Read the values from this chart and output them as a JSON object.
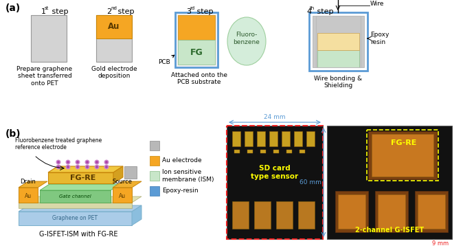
{
  "bg_color": "#ffffff",
  "color_au": "#F5A623",
  "color_fg": "#c8e6c9",
  "color_pet_grey": "#d3d3d3",
  "color_pcb_border": "#5b9bd5",
  "color_fluoro_fill": "#d4edda",
  "color_fluoro_border": "#9ecf9e",
  "color_au_pale": "#f5dfa0",
  "color_epoxy_grey": "#c8c8c8",
  "color_pet_blue": "#aacce8",
  "color_graphene_yellow": "#e0e0a0",
  "color_gate_green": "#80c880",
  "legend_items": [
    {
      "label": "Au electrode",
      "color": "#F5A623",
      "ec": "#c8860a"
    },
    {
      "label": "Ion sensitive\nmembrane (ISM)",
      "color": "#c8e6c9",
      "ec": "#88bb88"
    },
    {
      "label": "Epoxy-resin",
      "color": "#5b9bd5",
      "ec": "#3a7ab5"
    }
  ]
}
